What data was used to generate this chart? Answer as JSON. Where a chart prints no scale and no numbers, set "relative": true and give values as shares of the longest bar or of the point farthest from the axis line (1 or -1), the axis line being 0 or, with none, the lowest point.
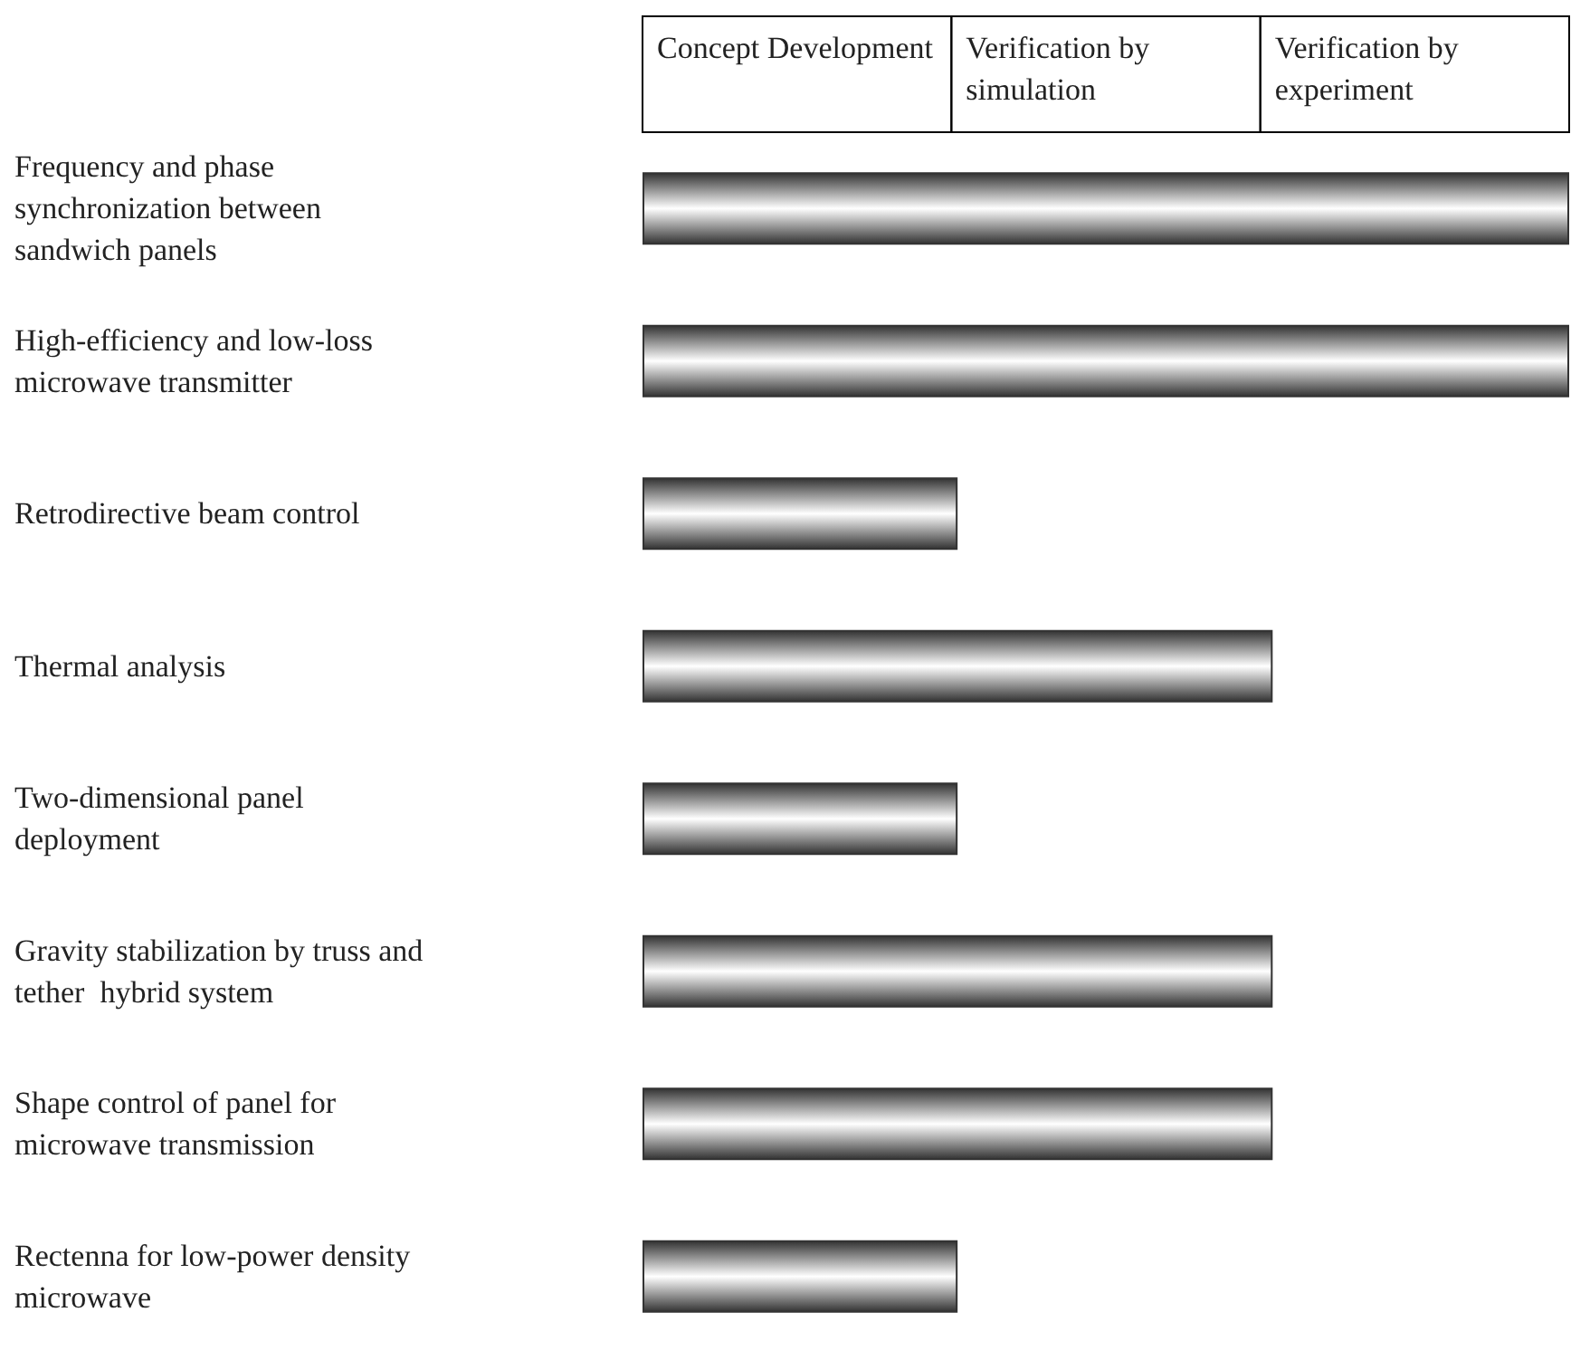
{
  "chart_data": {
    "type": "bar",
    "orientation": "horizontal",
    "relative": true,
    "color": "#333333",
    "categories": [
      "Frequency and phase synchronization between sandwich panels",
      "High-efficiency and low-loss microwave transmitter",
      "Retrodirective beam control",
      "Thermal analysis",
      "Two-dimensional panel deployment",
      "Gravity stabilization by truss and tether  hybrid system",
      "Shape control of panel for microwave transmission",
      "Rectenna for low-power density microwave"
    ],
    "values": [
      1,
      1,
      0.34,
      0.68,
      0.34,
      0.68,
      0.68,
      0.34
    ],
    "annotations": [
      "Concept Development",
      "Verification by simulation",
      "Verification by experiment"
    ]
  }
}
